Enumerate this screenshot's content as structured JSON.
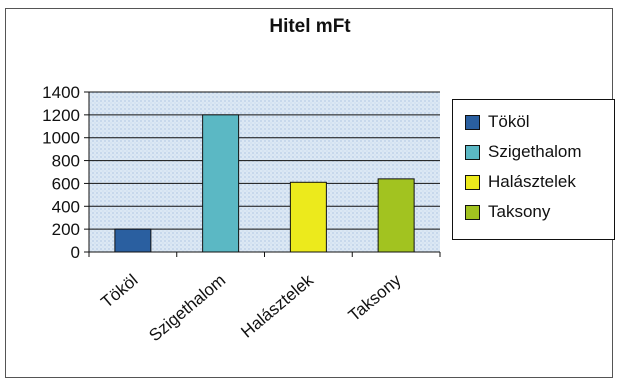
{
  "chart_data": {
    "type": "bar",
    "title": "Hitel mFt",
    "xlabel": "",
    "ylabel": "",
    "categories": [
      "Tököl",
      "Szigethalom",
      "Halásztelek",
      "Taksony"
    ],
    "values": [
      200,
      1200,
      610,
      640
    ],
    "colors": [
      "#2a5fa0",
      "#5bb8c4",
      "#ecea1c",
      "#a2c320"
    ],
    "ylim": [
      0,
      1400
    ],
    "yticks": [
      0,
      200,
      400,
      600,
      800,
      1000,
      1200,
      1400
    ],
    "grid": true,
    "legend_position": "right",
    "legend": [
      "Tököl",
      "Szigethalom",
      "Halásztelek",
      "Taksony"
    ]
  }
}
